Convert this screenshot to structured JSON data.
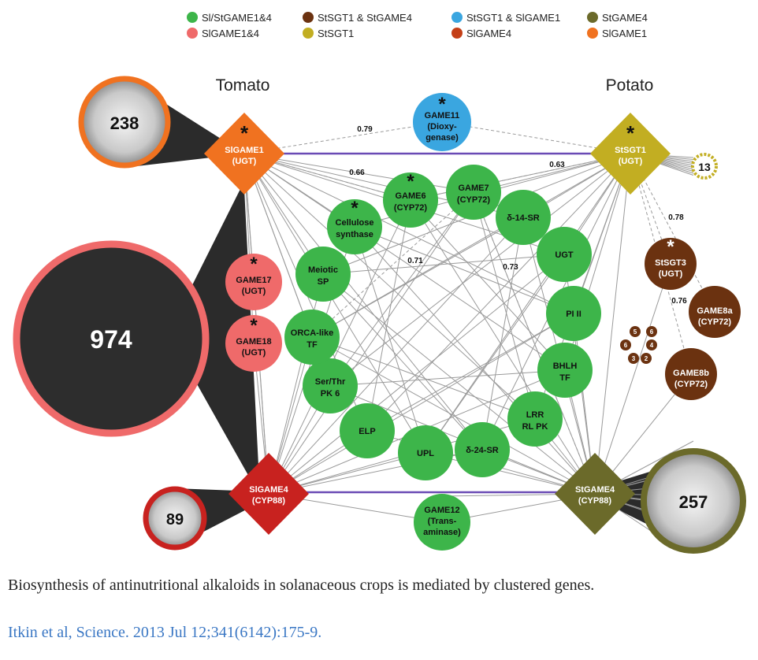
{
  "legend": [
    {
      "label": "Sl/StGAME1&4",
      "color": "#3db54a"
    },
    {
      "label": "SlGAME1&4",
      "color": "#ef6a6a"
    },
    {
      "label": "StSGT1 & StGAME4",
      "color": "#6b3210"
    },
    {
      "label": "StSGT1",
      "color": "#c2ae22"
    },
    {
      "label": "StSGT1 & SlGAME1",
      "color": "#3aa6e0"
    },
    {
      "label": "SlGAME4",
      "color": "#c43f17"
    },
    {
      "label": "StGAME4",
      "color": "#6b6a2a"
    },
    {
      "label": "SlGAME1",
      "color": "#f07220"
    }
  ],
  "headings": {
    "left": "Tomato",
    "right": "Potato"
  },
  "hubs": {
    "slgame1": {
      "line1": "SlGAME1",
      "line2": "(UGT)",
      "star": "*",
      "color": "#f07220"
    },
    "slgame4": {
      "line1": "SlGAME4",
      "line2": "(CYP88)",
      "color": "#c8221f"
    },
    "stsgt1": {
      "line1": "StSGT1",
      "line2": "(UGT)",
      "star": "*",
      "color": "#c2ae22"
    },
    "stgame4": {
      "line1": "StGAME4",
      "line2": "(CYP88)",
      "color": "#6b6a2a"
    }
  },
  "counts": {
    "c238": "238",
    "c974": "974",
    "c89": "89",
    "c257": "257",
    "c13": "13"
  },
  "blue_node": {
    "l1": "GAME11",
    "l2": "(Dioxy-",
    "l3": "genase)",
    "star": "*"
  },
  "green_nodes": [
    {
      "l1": "GAME6",
      "l2": "(CYP72)",
      "star": "*"
    },
    {
      "l1": "GAME7",
      "l2": "(CYP72)",
      "star": ""
    },
    {
      "l1": "δ-14-SR",
      "l2": "",
      "star": ""
    },
    {
      "l1": "UGT",
      "l2": "",
      "star": ""
    },
    {
      "l1": "PI II",
      "l2": "",
      "star": ""
    },
    {
      "l1": "BHLH",
      "l2": "TF",
      "star": ""
    },
    {
      "l1": "LRR",
      "l2": "RL PK",
      "star": ""
    },
    {
      "l1": "δ-24-SR",
      "l2": "",
      "star": ""
    },
    {
      "l1": "UPL",
      "l2": "",
      "star": ""
    },
    {
      "l1": "ELP",
      "l2": "",
      "star": ""
    },
    {
      "l1": "Ser/Thr",
      "l2": "PK 6",
      "star": ""
    },
    {
      "l1": "ORCA-like",
      "l2": "TF",
      "star": ""
    },
    {
      "l1": "Meiotic",
      "l2": "SP",
      "star": ""
    },
    {
      "l1": "Cellulose",
      "l2": "synthase",
      "star": "*"
    }
  ],
  "game12": {
    "l1": "GAME12",
    "l2": "(Trans-",
    "l3": "aminase)"
  },
  "pink_nodes": [
    {
      "l1": "GAME17",
      "l2": "(UGT)",
      "star": "*"
    },
    {
      "l1": "GAME18",
      "l2": "(UGT)",
      "star": "*"
    }
  ],
  "brown_nodes": [
    {
      "l1": "StSGT3",
      "l2": "(UGT)",
      "star": "*"
    },
    {
      "l1": "GAME8a",
      "l2": "(CYP72)",
      "star": ""
    },
    {
      "l1": "GAME8b",
      "l2": "(CYP72)",
      "star": ""
    }
  ],
  "small_brown": [
    "1",
    "2",
    "3",
    "4",
    "5",
    "6"
  ],
  "edge_labels": [
    "0.79",
    "0.66",
    "0.63",
    "0.71",
    "0.73",
    "0.78",
    "0.76"
  ],
  "caption": "Biosynthesis of antinutritional alkaloids in solanaceous crops is mediated by clustered genes.",
  "citation": "Itkin et al, Science. 2013 Jul 12;341(6142):175-9."
}
